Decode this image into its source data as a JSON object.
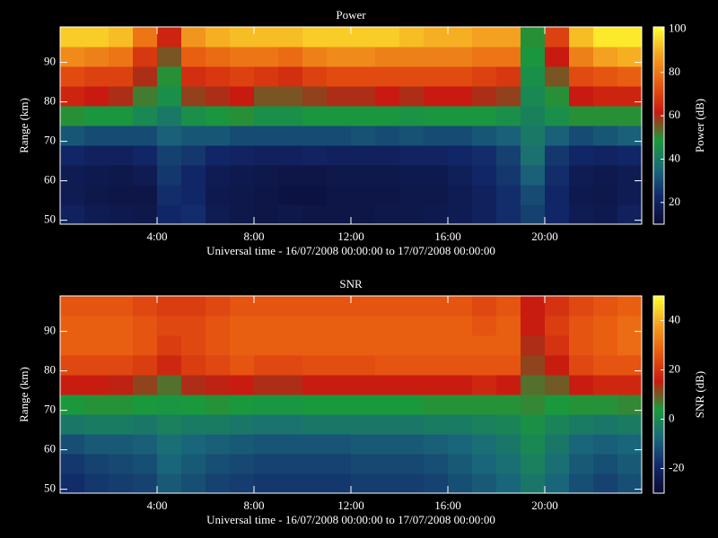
{
  "chart_data": [
    {
      "type": "heatmap",
      "title": "Power",
      "xlabel": "Universal time - 16/07/2008 00:00:00 to 17/07/2008 00:00:00",
      "ylabel": "Range (km)",
      "colorbar_label": "Power (dB)",
      "x": [
        0,
        1,
        2,
        3,
        4,
        5,
        6,
        7,
        8,
        9,
        10,
        11,
        12,
        13,
        14,
        15,
        16,
        17,
        18,
        19,
        20,
        21,
        22,
        23,
        24
      ],
      "y": [
        49,
        54,
        59,
        64,
        69,
        74,
        79,
        84,
        89,
        94,
        99
      ],
      "z": [
        [
          20,
          18,
          17,
          16,
          22,
          24,
          18,
          16,
          15,
          16,
          15,
          15,
          15,
          16,
          16,
          17,
          18,
          20,
          24,
          28,
          22,
          18,
          17,
          20
        ],
        [
          18,
          16,
          15,
          15,
          24,
          22,
          17,
          16,
          15,
          14,
          14,
          15,
          15,
          15,
          16,
          16,
          18,
          20,
          24,
          30,
          22,
          17,
          16,
          18
        ],
        [
          18,
          17,
          16,
          18,
          26,
          22,
          18,
          17,
          16,
          15,
          15,
          16,
          16,
          16,
          17,
          17,
          19,
          22,
          26,
          34,
          24,
          18,
          17,
          18
        ],
        [
          22,
          20,
          20,
          22,
          28,
          26,
          22,
          21,
          20,
          20,
          21,
          20,
          20,
          20,
          21,
          21,
          22,
          24,
          28,
          38,
          26,
          22,
          21,
          22
        ],
        [
          32,
          30,
          30,
          30,
          34,
          32,
          32,
          30,
          30,
          30,
          30,
          30,
          31,
          30,
          31,
          30,
          30,
          32,
          34,
          40,
          34,
          30,
          32,
          34
        ],
        [
          50,
          48,
          48,
          44,
          40,
          46,
          48,
          50,
          46,
          46,
          48,
          48,
          48,
          48,
          47,
          48,
          48,
          48,
          46,
          42,
          46,
          50,
          50,
          50
        ],
        [
          64,
          62,
          60,
          52,
          46,
          58,
          60,
          62,
          56,
          56,
          58,
          60,
          60,
          62,
          60,
          62,
          62,
          60,
          58,
          44,
          50,
          62,
          64,
          64
        ],
        [
          72,
          70,
          70,
          60,
          50,
          66,
          68,
          70,
          68,
          66,
          70,
          72,
          72,
          72,
          72,
          72,
          72,
          70,
          68,
          46,
          56,
          72,
          74,
          76
        ],
        [
          84,
          82,
          80,
          68,
          56,
          76,
          78,
          80,
          80,
          78,
          82,
          84,
          84,
          82,
          82,
          82,
          82,
          80,
          80,
          48,
          62,
          82,
          88,
          90
        ],
        [
          94,
          94,
          92,
          80,
          64,
          86,
          90,
          92,
          92,
          92,
          94,
          94,
          94,
          94,
          92,
          90,
          90,
          88,
          88,
          50,
          70,
          92,
          98,
          98
        ]
      ],
      "xlim": [
        0,
        24
      ],
      "ylim": [
        49,
        99
      ],
      "xticks": [
        {
          "value": 4,
          "label": "4:00"
        },
        {
          "value": 8,
          "label": "8:00"
        },
        {
          "value": 12,
          "label": "12:00"
        },
        {
          "value": 16,
          "label": "16:00"
        },
        {
          "value": 20,
          "label": "20:00"
        }
      ],
      "yticks": [
        50,
        60,
        70,
        80,
        90
      ],
      "zlim": [
        10,
        101
      ],
      "zticks": [
        20,
        40,
        60,
        80,
        100
      ],
      "colormap": [
        "#0a0a30",
        "#12286a",
        "#1a6a7a",
        "#1a9a3a",
        "#c81a10",
        "#e85a10",
        "#f4a020",
        "#ffff30"
      ]
    },
    {
      "type": "heatmap",
      "title": "SNR",
      "xlabel": "Universal time - 16/07/2008 00:00:00 to 17/07/2008 00:00:00",
      "ylabel": "Range (km)",
      "colorbar_label": "SNR (dB)",
      "x": [
        0,
        1,
        2,
        3,
        4,
        5,
        6,
        7,
        8,
        9,
        10,
        11,
        12,
        13,
        14,
        15,
        16,
        17,
        18,
        19,
        20,
        21,
        22,
        23,
        24
      ],
      "y": [
        49,
        54,
        59,
        64,
        69,
        74,
        79,
        84,
        89,
        94,
        99
      ],
      "z": [
        [
          -18,
          -16,
          -15,
          -14,
          -10,
          -12,
          -14,
          -15,
          -16,
          -16,
          -16,
          -16,
          -15,
          -15,
          -15,
          -14,
          -12,
          -10,
          -8,
          -4,
          -8,
          -12,
          -14,
          -12
        ],
        [
          -16,
          -14,
          -13,
          -12,
          -8,
          -10,
          -12,
          -13,
          -14,
          -14,
          -14,
          -14,
          -13,
          -13,
          -13,
          -12,
          -10,
          -8,
          -6,
          -2,
          -6,
          -10,
          -12,
          -10
        ],
        [
          -12,
          -10,
          -10,
          -9,
          -6,
          -8,
          -9,
          -10,
          -11,
          -11,
          -11,
          -11,
          -10,
          -10,
          -10,
          -9,
          -8,
          -6,
          -4,
          0,
          -4,
          -8,
          -9,
          -8
        ],
        [
          -4,
          -3,
          -3,
          -4,
          -2,
          -3,
          -3,
          -4,
          -5,
          -5,
          -4,
          -4,
          -4,
          -4,
          -4,
          -3,
          -3,
          -2,
          -1,
          2,
          -1,
          -3,
          -4,
          -3
        ],
        [
          4,
          5,
          5,
          4,
          3,
          4,
          5,
          4,
          3,
          3,
          4,
          4,
          4,
          4,
          4,
          5,
          5,
          5,
          5,
          6,
          4,
          5,
          5,
          6
        ],
        [
          16,
          16,
          15,
          12,
          8,
          14,
          15,
          16,
          14,
          14,
          16,
          16,
          16,
          16,
          16,
          16,
          16,
          18,
          16,
          8,
          10,
          16,
          18,
          18
        ],
        [
          24,
          24,
          24,
          22,
          18,
          22,
          24,
          26,
          24,
          24,
          25,
          25,
          25,
          26,
          26,
          26,
          26,
          26,
          26,
          12,
          16,
          24,
          26,
          26
        ],
        [
          28,
          28,
          28,
          26,
          22,
          24,
          26,
          28,
          28,
          28,
          28,
          28,
          28,
          28,
          28,
          28,
          28,
          28,
          28,
          14,
          20,
          26,
          28,
          30
        ],
        [
          28,
          28,
          28,
          26,
          24,
          24,
          26,
          28,
          28,
          28,
          28,
          28,
          28,
          28,
          28,
          28,
          28,
          26,
          28,
          16,
          22,
          26,
          28,
          30
        ],
        [
          26,
          26,
          26,
          24,
          22,
          22,
          24,
          26,
          26,
          26,
          26,
          26,
          26,
          26,
          26,
          26,
          26,
          24,
          26,
          16,
          20,
          24,
          26,
          28
        ]
      ],
      "xlim": [
        0,
        24
      ],
      "ylim": [
        49,
        99
      ],
      "xticks": [
        {
          "value": 4,
          "label": "4:00"
        },
        {
          "value": 8,
          "label": "8:00"
        },
        {
          "value": 12,
          "label": "12:00"
        },
        {
          "value": 16,
          "label": "16:00"
        },
        {
          "value": 20,
          "label": "20:00"
        }
      ],
      "yticks": [
        50,
        60,
        70,
        80,
        90
      ],
      "zlim": [
        -30,
        50
      ],
      "zticks": [
        -20,
        0,
        20,
        40
      ],
      "colormap": [
        "#0a0a30",
        "#12286a",
        "#1a6a7a",
        "#1a9a3a",
        "#c81a10",
        "#e85a10",
        "#f4a020",
        "#ffff30"
      ]
    }
  ]
}
